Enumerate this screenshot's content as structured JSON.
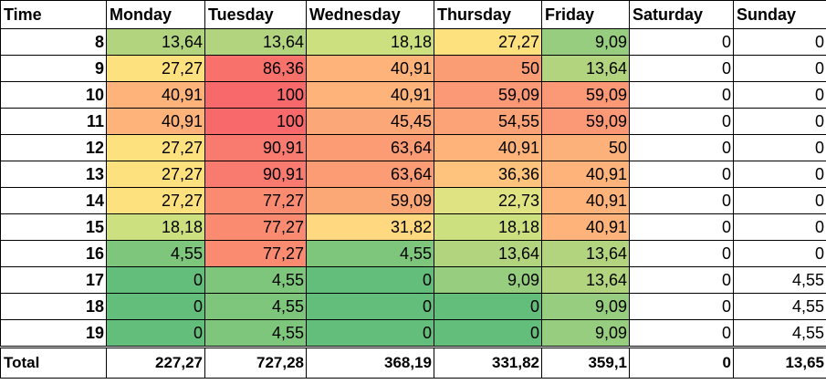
{
  "headers": [
    "Time",
    "Monday",
    "Tuesday",
    "Wednesday",
    "Thursday",
    "Friday",
    "Saturday",
    "Sunday"
  ],
  "rows": [
    {
      "time": "8",
      "values": [
        "13,64",
        "13,64",
        "18,18",
        "27,27",
        "9,09",
        "0",
        "0"
      ],
      "colors": [
        "#b2d47f",
        "#b2d47f",
        "#cde07f",
        "#fee17f",
        "#97cd7e",
        "#ffffff",
        "#ffffff"
      ]
    },
    {
      "time": "9",
      "values": [
        "27,27",
        "86,36",
        "40,91",
        "50",
        "13,64",
        "0",
        "0"
      ],
      "colors": [
        "#fee17f",
        "#f8716b",
        "#fdb37a",
        "#fa9d75",
        "#b2d47f",
        "#ffffff",
        "#ffffff"
      ]
    },
    {
      "time": "10",
      "values": [
        "40,91",
        "100",
        "40,91",
        "59,09",
        "59,09",
        "0",
        "0"
      ],
      "colors": [
        "#fdb37a",
        "#f8696b",
        "#fdb37a",
        "#fb9875",
        "#fb9875",
        "#ffffff",
        "#ffffff"
      ]
    },
    {
      "time": "11",
      "values": [
        "40,91",
        "100",
        "45,45",
        "54,55",
        "59,09",
        "0",
        "0"
      ],
      "colors": [
        "#fdb37a",
        "#f8696b",
        "#fca777",
        "#fca477",
        "#fb9875",
        "#ffffff",
        "#ffffff"
      ]
    },
    {
      "time": "12",
      "values": [
        "27,27",
        "90,91",
        "63,64",
        "40,91",
        "50",
        "0",
        "0"
      ],
      "colors": [
        "#fee17f",
        "#f97a6f",
        "#fb9c74",
        "#fdb37a",
        "#fcb07a",
        "#ffffff",
        "#ffffff"
      ]
    },
    {
      "time": "13",
      "values": [
        "27,27",
        "90,91",
        "63,64",
        "36,36",
        "40,91",
        "0",
        "0"
      ],
      "colors": [
        "#fee17f",
        "#f97a6f",
        "#fb9c74",
        "#fec47d",
        "#fdb37a",
        "#ffffff",
        "#ffffff"
      ]
    },
    {
      "time": "14",
      "values": [
        "27,27",
        "77,27",
        "59,09",
        "22,73",
        "40,91",
        "0",
        "0"
      ],
      "colors": [
        "#fee17f",
        "#fa8b71",
        "#fca776",
        "#e0e381",
        "#fdb37a",
        "#ffffff",
        "#ffffff"
      ]
    },
    {
      "time": "15",
      "values": [
        "18,18",
        "77,27",
        "31,82",
        "18,18",
        "40,91",
        "0",
        "0"
      ],
      "colors": [
        "#cde07f",
        "#fa8b71",
        "#ffd87f",
        "#cde07f",
        "#fdb37a",
        "#ffffff",
        "#ffffff"
      ]
    },
    {
      "time": "16",
      "values": [
        "4,55",
        "77,27",
        "4,55",
        "13,64",
        "13,64",
        "0",
        "0"
      ],
      "colors": [
        "#7dc67b",
        "#fa8b71",
        "#7dc67b",
        "#b2d47f",
        "#b2d47f",
        "#ffffff",
        "#ffffff"
      ]
    },
    {
      "time": "17",
      "values": [
        "0",
        "4,55",
        "0",
        "9,09",
        "13,64",
        "0",
        "4,55"
      ],
      "colors": [
        "#63be7b",
        "#7dc67b",
        "#63be7b",
        "#97cd7e",
        "#b2d47f",
        "#ffffff",
        "#ffffff"
      ]
    },
    {
      "time": "18",
      "values": [
        "0",
        "4,55",
        "0",
        "0",
        "9,09",
        "0",
        "4,55"
      ],
      "colors": [
        "#63be7b",
        "#7dc67b",
        "#63be7b",
        "#63be7b",
        "#97cd7e",
        "#ffffff",
        "#ffffff"
      ]
    },
    {
      "time": "19",
      "values": [
        "0",
        "4,55",
        "0",
        "0",
        "9,09",
        "0",
        "4,55"
      ],
      "colors": [
        "#63be7b",
        "#7dc67b",
        "#63be7b",
        "#63be7b",
        "#97cd7e",
        "#ffffff",
        "#ffffff"
      ]
    }
  ],
  "totals": {
    "label": "Total",
    "values": [
      "227,27",
      "727,28",
      "368,19",
      "331,82",
      "359,1",
      "0",
      "13,65"
    ]
  }
}
